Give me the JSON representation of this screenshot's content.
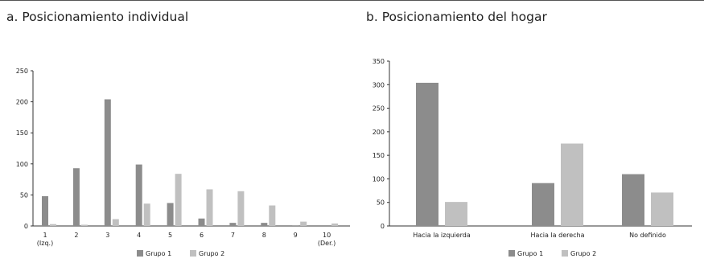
{
  "chart_data": [
    {
      "type": "bar",
      "title": "a. Posicionamiento individual",
      "categories": [
        "1",
        "2",
        "3",
        "4",
        "5",
        "6",
        "7",
        "8",
        "9",
        "10"
      ],
      "category_sublabels": {
        "1": "(Izq.)",
        "10": "(Der.)"
      },
      "series": [
        {
          "name": "Grupo 1",
          "color": "#8c8c8c",
          "values": [
            48,
            93,
            204,
            99,
            37,
            12,
            5,
            5,
            1,
            0
          ]
        },
        {
          "name": "Grupo 2",
          "color": "#c0c0c0",
          "values": [
            3,
            2,
            11,
            36,
            84,
            59,
            56,
            33,
            7,
            4
          ]
        }
      ],
      "ylim": [
        0,
        250
      ],
      "yticks": [
        0,
        50,
        100,
        150,
        200,
        250
      ],
      "legend": "bottom"
    },
    {
      "type": "bar",
      "title": "b. Posicionamiento del hogar",
      "categories": [
        "Hacia la izquierda",
        "Hacia la derecha",
        "No definido"
      ],
      "series": [
        {
          "name": "Grupo 1",
          "color": "#8c8c8c",
          "values": [
            304,
            91,
            110
          ]
        },
        {
          "name": "Grupo 2",
          "color": "#c0c0c0",
          "values": [
            51,
            175,
            71
          ]
        }
      ],
      "ylim": [
        0,
        350
      ],
      "yticks": [
        0,
        50,
        100,
        150,
        200,
        250,
        300,
        350
      ],
      "legend": "bottom"
    }
  ]
}
